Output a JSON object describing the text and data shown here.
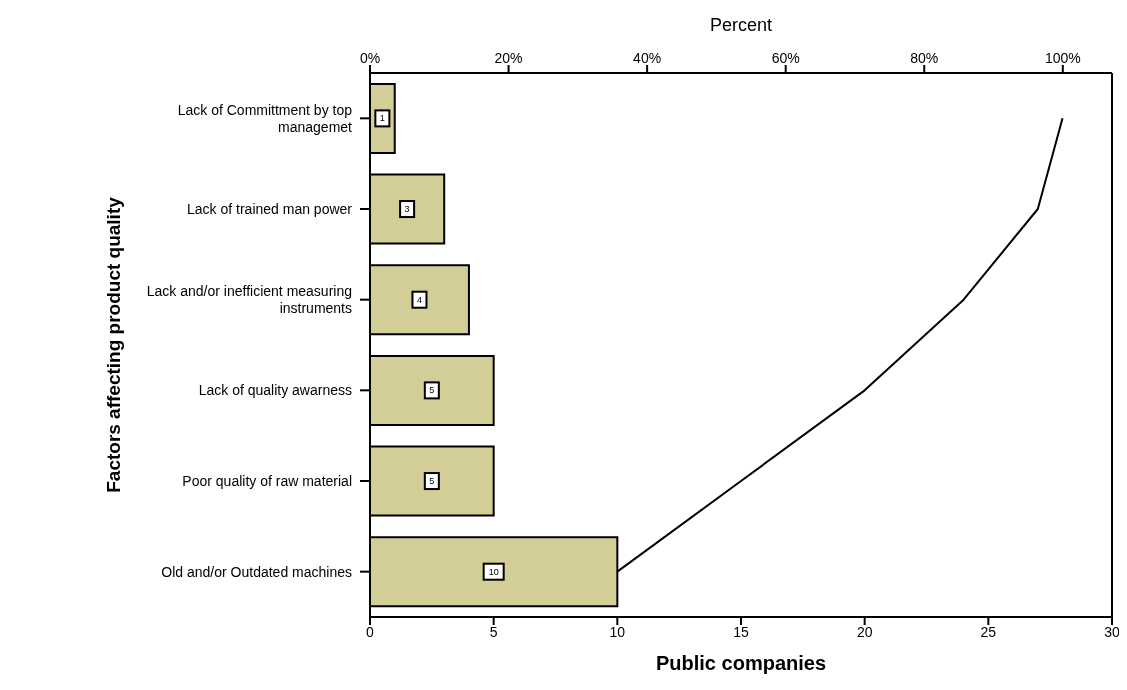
{
  "chart_data": {
    "type": "bar",
    "orientation": "horizontal",
    "xlabel": "Public companies",
    "ylabel": "Factors affecting product quality",
    "x2label": "Percent",
    "categories": [
      "Lack of Committment by top managemet",
      "Lack of trained man power",
      "Lack and/or inefficient measuring instruments",
      "Lack of quality awarness ",
      "Poor quality of raw material",
      "Old and/or Outdated machines"
    ],
    "series": [
      {
        "color": "#d3cd98",
        "values": [
          1,
          3,
          4,
          5,
          5,
          10
        ],
        "value_labels": [
          "1",
          "3",
          "4",
          "5",
          "5",
          "10"
        ]
      },
      {
        "type": "line",
        "color": "#000000",
        "values": [
          28,
          27,
          24,
          20,
          15,
          10
        ]
      }
    ],
    "xlim": [
      0,
      30
    ],
    "xticks": [
      0,
      5,
      10,
      15,
      20,
      25,
      30
    ],
    "x2lim": [
      0,
      107.1
    ],
    "x2ticks": [
      {
        "value": 0,
        "label": "0%"
      },
      {
        "value": 20,
        "label": "20%"
      },
      {
        "value": 40,
        "label": "40%"
      },
      {
        "value": 60,
        "label": "60%"
      },
      {
        "value": 80,
        "label": "80%"
      },
      {
        "value": 100,
        "label": "100%"
      }
    ]
  }
}
